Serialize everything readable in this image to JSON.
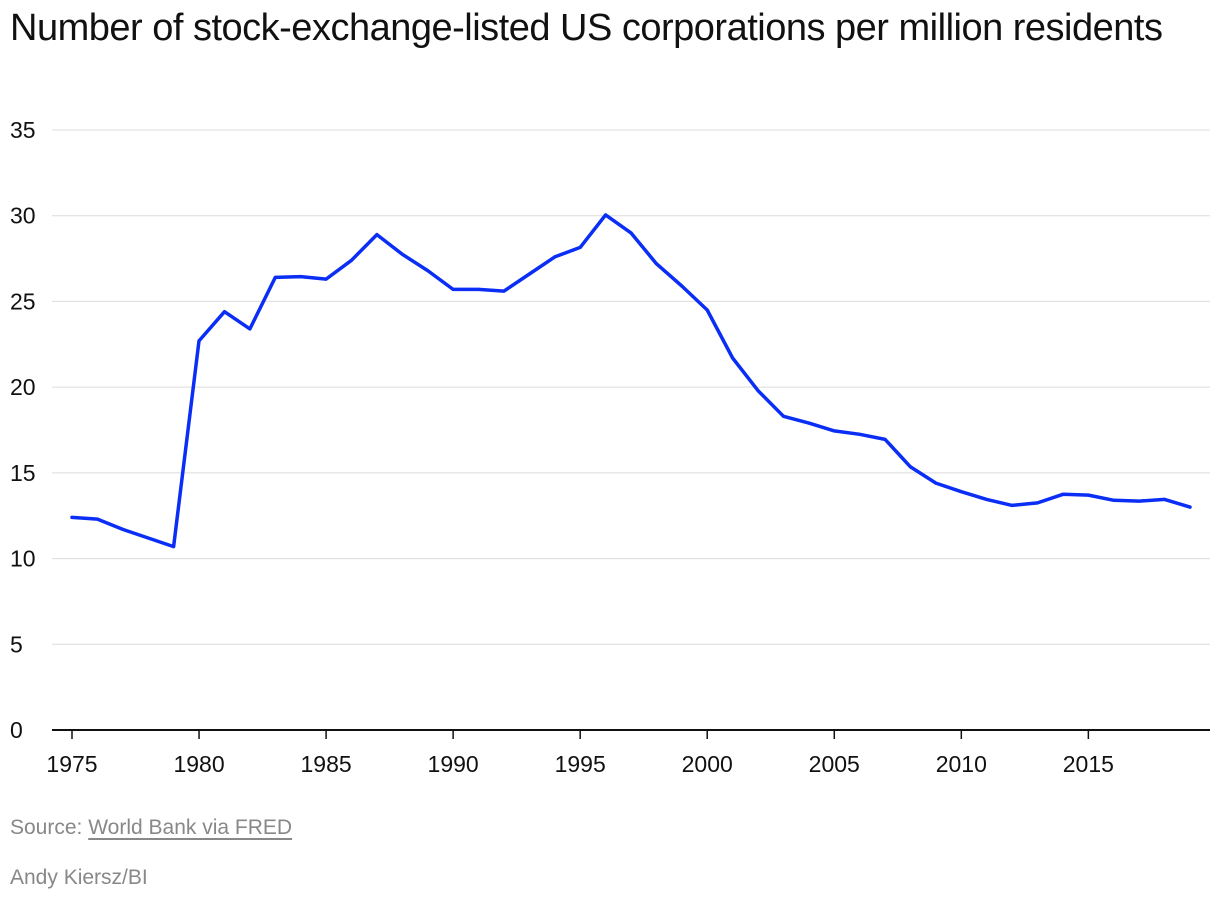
{
  "chart_data": {
    "type": "line",
    "title": "Number of stock-exchange-listed US corporations per million residents",
    "xlabel": "",
    "ylabel": "",
    "x": [
      1975,
      1976,
      1977,
      1978,
      1979,
      1980,
      1981,
      1982,
      1983,
      1984,
      1985,
      1986,
      1987,
      1988,
      1989,
      1990,
      1991,
      1992,
      1993,
      1994,
      1995,
      1996,
      1997,
      1998,
      1999,
      2000,
      2001,
      2002,
      2003,
      2004,
      2005,
      2006,
      2007,
      2008,
      2009,
      2010,
      2011,
      2012,
      2013,
      2014,
      2015,
      2016,
      2017,
      2018,
      2019
    ],
    "series": [
      {
        "name": "",
        "values": [
          12.4,
          12.3,
          11.7,
          11.2,
          10.7,
          22.7,
          24.4,
          23.4,
          26.4,
          26.45,
          26.3,
          27.4,
          28.9,
          27.75,
          26.8,
          25.7,
          25.7,
          25.6,
          26.6,
          27.6,
          28.15,
          30.05,
          29.0,
          27.2,
          25.9,
          24.5,
          21.7,
          19.8,
          18.3,
          17.9,
          17.45,
          17.25,
          16.95,
          15.35,
          14.4,
          13.9,
          13.45,
          13.1,
          13.25,
          13.75,
          13.7,
          13.4,
          13.35,
          13.45,
          13.0
        ],
        "color": "#0a2ef5"
      }
    ],
    "xticks": [
      1975,
      1980,
      1985,
      1990,
      1995,
      2000,
      2005,
      2010,
      2015
    ],
    "yticks": [
      0,
      5,
      10,
      15,
      20,
      25,
      30,
      35
    ],
    "xlim": [
      1975,
      2019
    ],
    "ylim": [
      0,
      35
    ],
    "grid": true,
    "legend": "none"
  },
  "footer": {
    "source_prefix": "Source: ",
    "source_link": "World Bank via FRED",
    "credit": "Andy Kiersz/BI"
  }
}
